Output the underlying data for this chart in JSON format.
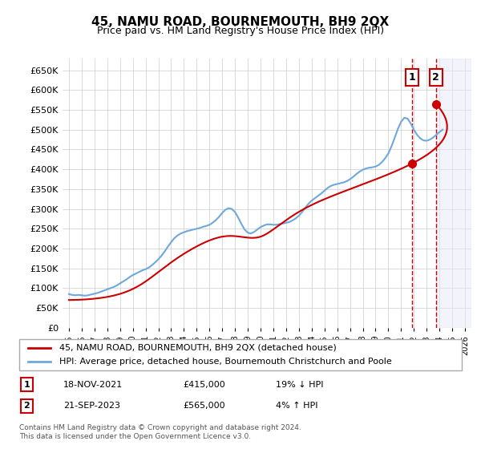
{
  "title": "45, NAMU ROAD, BOURNEMOUTH, BH9 2QX",
  "subtitle": "Price paid vs. HM Land Registry's House Price Index (HPI)",
  "legend_line1": "45, NAMU ROAD, BOURNEMOUTH, BH9 2QX (detached house)",
  "legend_line2": "HPI: Average price, detached house, Bournemouth Christchurch and Poole",
  "annotation1_label": "1",
  "annotation1_date": "18-NOV-2021",
  "annotation1_price": "£415,000",
  "annotation1_hpi": "19% ↓ HPI",
  "annotation2_label": "2",
  "annotation2_date": "21-SEP-2023",
  "annotation2_price": "£565,000",
  "annotation2_hpi": "4% ↑ HPI",
  "footnote": "Contains HM Land Registry data © Crown copyright and database right 2024.\nThis data is licensed under the Open Government Licence v3.0.",
  "hpi_color": "#6fa8dc",
  "price_color": "#cc0000",
  "marker1_x": 2021.88,
  "marker1_y": 415000,
  "marker2_x": 2023.72,
  "marker2_y": 565000,
  "vline1_x": 2021.88,
  "vline2_x": 2023.72,
  "ylim": [
    0,
    680000
  ],
  "xlim": [
    1994.5,
    2026.5
  ],
  "yticks": [
    0,
    50000,
    100000,
    150000,
    200000,
    250000,
    300000,
    350000,
    400000,
    450000,
    500000,
    550000,
    600000,
    650000
  ],
  "ytick_labels": [
    "£0",
    "£50K",
    "£100K",
    "£150K",
    "£200K",
    "£250K",
    "£300K",
    "£350K",
    "£400K",
    "£450K",
    "£500K",
    "£550K",
    "£600K",
    "£650K"
  ],
  "xticks": [
    1995,
    1996,
    1997,
    1998,
    1999,
    2000,
    2001,
    2002,
    2003,
    2004,
    2005,
    2006,
    2007,
    2008,
    2009,
    2010,
    2011,
    2012,
    2013,
    2014,
    2015,
    2016,
    2017,
    2018,
    2019,
    2020,
    2021,
    2022,
    2023,
    2024,
    2025,
    2026
  ],
  "hpi_x": [
    1995,
    1995.25,
    1995.5,
    1995.75,
    1996,
    1996.25,
    1996.5,
    1996.75,
    1997,
    1997.25,
    1997.5,
    1997.75,
    1998,
    1998.25,
    1998.5,
    1998.75,
    1999,
    1999.25,
    1999.5,
    1999.75,
    2000,
    2000.25,
    2000.5,
    2000.75,
    2001,
    2001.25,
    2001.5,
    2001.75,
    2002,
    2002.25,
    2002.5,
    2002.75,
    2003,
    2003.25,
    2003.5,
    2003.75,
    2004,
    2004.25,
    2004.5,
    2004.75,
    2005,
    2005.25,
    2005.5,
    2005.75,
    2006,
    2006.25,
    2006.5,
    2006.75,
    2007,
    2007.25,
    2007.5,
    2007.75,
    2008,
    2008.25,
    2008.5,
    2008.75,
    2009,
    2009.25,
    2009.5,
    2009.75,
    2010,
    2010.25,
    2010.5,
    2010.75,
    2011,
    2011.25,
    2011.5,
    2011.75,
    2012,
    2012.25,
    2012.5,
    2012.75,
    2013,
    2013.25,
    2013.5,
    2013.75,
    2014,
    2014.25,
    2014.5,
    2014.75,
    2015,
    2015.25,
    2015.5,
    2015.75,
    2016,
    2016.25,
    2016.5,
    2016.75,
    2017,
    2017.25,
    2017.5,
    2017.75,
    2018,
    2018.25,
    2018.5,
    2018.75,
    2019,
    2019.25,
    2019.5,
    2019.75,
    2020,
    2020.25,
    2020.5,
    2020.75,
    2021,
    2021.25,
    2021.5,
    2021.75,
    2022,
    2022.25,
    2022.5,
    2022.75,
    2023,
    2023.25,
    2023.5,
    2023.75,
    2024,
    2024.25
  ],
  "hpi_y": [
    85000,
    83000,
    82000,
    83000,
    82000,
    81000,
    82000,
    84000,
    86000,
    88000,
    91000,
    94000,
    97000,
    100000,
    103000,
    107000,
    112000,
    117000,
    122000,
    128000,
    133000,
    137000,
    141000,
    145000,
    148000,
    152000,
    158000,
    165000,
    173000,
    182000,
    193000,
    205000,
    216000,
    226000,
    233000,
    238000,
    241000,
    244000,
    246000,
    248000,
    250000,
    252000,
    255000,
    257000,
    260000,
    265000,
    272000,
    280000,
    290000,
    298000,
    302000,
    300000,
    292000,
    278000,
    262000,
    248000,
    240000,
    238000,
    242000,
    248000,
    254000,
    258000,
    261000,
    261000,
    260000,
    260000,
    262000,
    263000,
    265000,
    267000,
    271000,
    276000,
    283000,
    292000,
    303000,
    313000,
    321000,
    327000,
    333000,
    339000,
    346000,
    353000,
    358000,
    361000,
    363000,
    365000,
    367000,
    370000,
    375000,
    381000,
    388000,
    394000,
    399000,
    402000,
    404000,
    405000,
    407000,
    411000,
    418000,
    428000,
    440000,
    458000,
    480000,
    502000,
    520000,
    530000,
    528000,
    516000,
    500000,
    487000,
    478000,
    473000,
    472000,
    475000,
    480000,
    487000,
    494000,
    500000
  ],
  "price_x": [
    1995.0,
    2000.0,
    2003.0,
    2007.0,
    2010.0,
    2014.0,
    2021.88,
    2023.72
  ],
  "price_y": [
    70000,
    98000,
    165000,
    230000,
    230000,
    310000,
    415000,
    565000
  ]
}
